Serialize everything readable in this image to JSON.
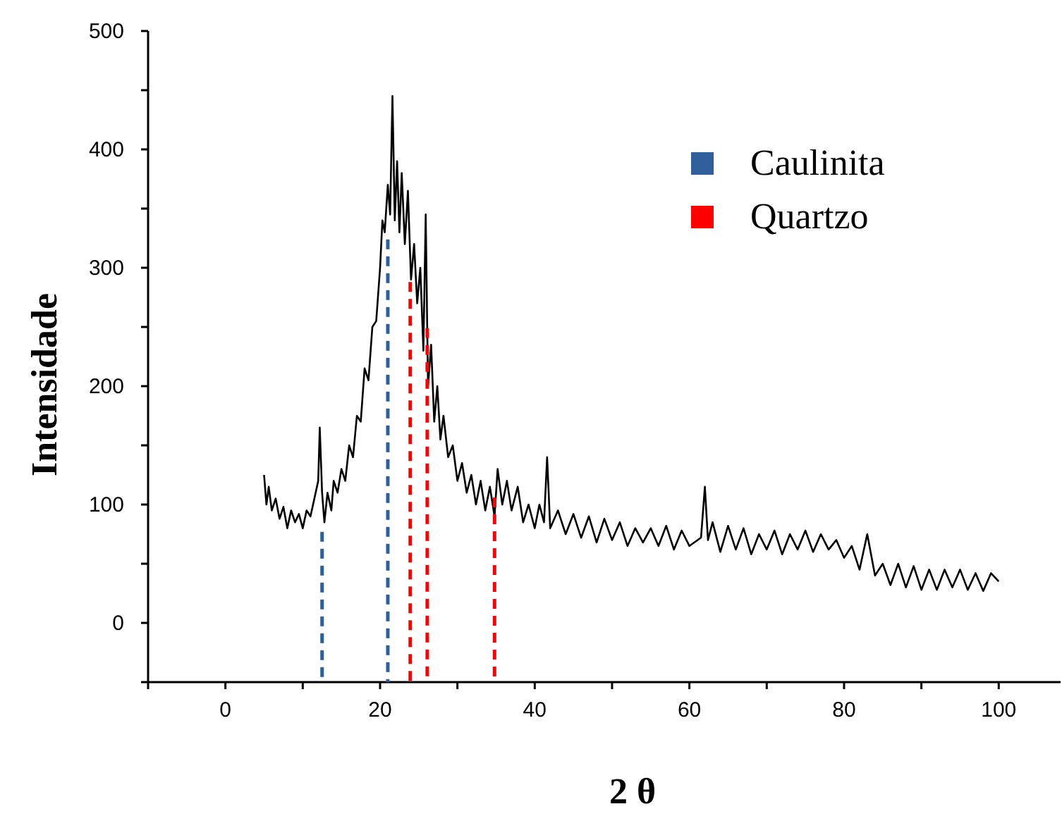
{
  "chart_data": {
    "type": "line",
    "xlabel": "2 θ",
    "ylabel": "Intensidade",
    "xlim": [
      -10,
      108
    ],
    "ylim": [
      -50,
      500
    ],
    "xticks": [
      {
        "value": -10,
        "label": null
      },
      0,
      {
        "value": 10,
        "label": null
      },
      20,
      {
        "value": 30,
        "label": null
      },
      40,
      {
        "value": 50,
        "label": null
      },
      60,
      {
        "value": 70,
        "label": null
      },
      80,
      {
        "value": 90,
        "label": null
      },
      100
    ],
    "yticks": [
      {
        "value": -50,
        "label": null
      },
      0,
      {
        "value": 50,
        "label": null
      },
      100,
      {
        "value": 150,
        "label": null
      },
      200,
      {
        "value": 250,
        "label": null
      },
      300,
      {
        "value": 350,
        "label": null
      },
      400,
      {
        "value": 450,
        "label": null
      },
      500
    ],
    "grid": false,
    "legend": "top right",
    "marker": "none",
    "series": [
      {
        "color": "#000000",
        "line_style": "solid",
        "x": [
          5,
          5.3,
          5.6,
          6,
          6.5,
          7,
          7.5,
          8,
          8.5,
          9,
          9.5,
          10,
          10.5,
          11,
          11.5,
          12,
          12.2,
          12.5,
          12.8,
          13.2,
          13.7,
          14,
          14.5,
          15,
          15.5,
          16,
          16.5,
          17,
          17.5,
          18,
          18.5,
          19,
          19.5,
          20,
          20.3,
          20.6,
          21,
          21.3,
          21.6,
          21.9,
          22.2,
          22.5,
          22.8,
          23.2,
          23.6,
          24,
          24.4,
          24.8,
          25.2,
          25.6,
          25.9,
          26.2,
          26.6,
          27,
          27.4,
          27.8,
          28.2,
          28.8,
          29.4,
          30,
          30.6,
          31.2,
          31.8,
          32.4,
          33,
          33.6,
          34.2,
          34.8,
          35.2,
          35.8,
          36.4,
          37,
          37.8,
          38.5,
          39.2,
          40,
          40.6,
          41.2,
          41.6,
          42,
          43,
          44,
          45,
          46,
          47,
          48,
          49,
          50,
          51,
          52,
          53,
          54,
          55,
          56,
          57,
          58,
          59,
          60,
          61.5,
          62,
          62.4,
          63,
          64,
          65,
          66,
          67,
          68,
          69,
          70,
          71,
          72,
          73,
          74,
          75,
          76,
          77,
          78,
          79,
          80,
          81,
          82,
          83,
          84,
          85,
          86,
          87,
          88,
          89,
          90,
          91,
          92,
          93,
          94,
          95,
          96,
          97,
          98,
          99,
          100
        ],
        "values": [
          125,
          100,
          115,
          95,
          105,
          88,
          98,
          80,
          95,
          85,
          92,
          80,
          95,
          90,
          105,
          120,
          165,
          110,
          85,
          110,
          95,
          120,
          110,
          130,
          120,
          150,
          140,
          175,
          170,
          215,
          205,
          250,
          255,
          300,
          340,
          330,
          370,
          345,
          445,
          340,
          390,
          330,
          380,
          320,
          365,
          290,
          320,
          270,
          300,
          230,
          345,
          200,
          235,
          170,
          200,
          155,
          175,
          140,
          150,
          120,
          135,
          110,
          125,
          100,
          120,
          95,
          115,
          90,
          130,
          100,
          120,
          95,
          115,
          85,
          100,
          80,
          100,
          85,
          140,
          80,
          95,
          75,
          92,
          72,
          90,
          68,
          88,
          70,
          85,
          65,
          80,
          68,
          80,
          65,
          82,
          62,
          78,
          65,
          72,
          115,
          70,
          85,
          60,
          82,
          62,
          80,
          58,
          75,
          62,
          78,
          58,
          75,
          62,
          78,
          60,
          75,
          62,
          70,
          55,
          65,
          45,
          75,
          40,
          50,
          32,
          50,
          30,
          48,
          28,
          45,
          28,
          45,
          30,
          45,
          28,
          42,
          27,
          42,
          35
        ]
      },
      {
        "name": "Caulinita",
        "color": "#2f5f98",
        "line_style": "dashed",
        "x": [
          12.5,
          12.5,
          null,
          21,
          21
        ],
        "values": [
          77,
          -50,
          null,
          324,
          -50
        ]
      },
      {
        "name": "Quartzo",
        "color": "#ff0000",
        "line_style": "dashed",
        "x": [
          23.9,
          23.9,
          null,
          26.1,
          26.1,
          null,
          34.8,
          34.8
        ],
        "values": [
          288,
          -50,
          null,
          249,
          -50,
          null,
          106,
          -50
        ]
      }
    ]
  }
}
